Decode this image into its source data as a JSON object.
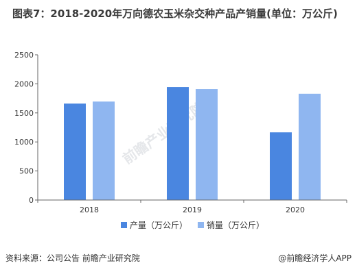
{
  "title": "图表7：2018-2020年万向德农玉米杂交种产品产销量(单位：万公斤)",
  "footer": {
    "source": "资料来源：公司公告 前瞻产业研究院",
    "brand": "@前瞻经济学人APP"
  },
  "watermark": {
    "text": "前瞻产业研究院"
  },
  "colors": {
    "production": "#4a86e0",
    "sales": "#8fb6f0",
    "axis": "#666666",
    "grid": "#e5e5e5"
  },
  "chart_data": {
    "type": "bar",
    "categories": [
      "2018",
      "2019",
      "2020"
    ],
    "series": [
      {
        "name": "产量（万公斤）",
        "values": [
          1660,
          1945,
          1165
        ]
      },
      {
        "name": "销量（万公斤）",
        "values": [
          1695,
          1910,
          1830
        ]
      }
    ],
    "yticks": [
      0,
      500,
      1000,
      1500,
      2000,
      2500
    ],
    "ylim": [
      0,
      2500
    ],
    "title": "图表7：2018-2020年万向德农玉米杂交种产品产销量(单位：万公斤)",
    "xlabel": "",
    "ylabel": "",
    "legend": "bottom"
  }
}
